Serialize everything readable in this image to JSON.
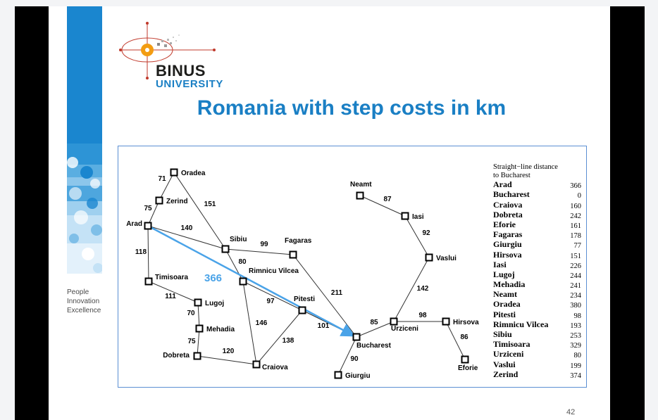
{
  "slide": {
    "title": "Romania with step costs in km",
    "page_number": "42",
    "tagline": [
      "People",
      "Innovation",
      "Excellence"
    ],
    "logo": {
      "name": "BINUS",
      "subtitle": "UNIVERSITY"
    }
  },
  "diagram": {
    "highlight_label": "366",
    "colors": {
      "accent": "#1a7fc4",
      "highlight": "#4aa3e8",
      "edge": "#333333",
      "node": "#000000"
    },
    "nodes": [
      {
        "id": "oradea",
        "label": "Oradea"
      },
      {
        "id": "zerind",
        "label": "Zerind"
      },
      {
        "id": "arad",
        "label": "Arad"
      },
      {
        "id": "sibiu",
        "label": "Sibiu"
      },
      {
        "id": "fagaras",
        "label": "Fagaras"
      },
      {
        "id": "rimnicu",
        "label": "Rimnicu Vilcea"
      },
      {
        "id": "timisoara",
        "label": "Timisoara"
      },
      {
        "id": "lugoj",
        "label": "Lugoj"
      },
      {
        "id": "mehadia",
        "label": "Mehadia"
      },
      {
        "id": "dobreta",
        "label": "Dobreta"
      },
      {
        "id": "craiova",
        "label": "Craiova"
      },
      {
        "id": "pitesti",
        "label": "Pitesti"
      },
      {
        "id": "bucharest",
        "label": "Bucharest"
      },
      {
        "id": "giurgiu",
        "label": "Giurgiu"
      },
      {
        "id": "urziceni",
        "label": "Urziceni"
      },
      {
        "id": "hirsova",
        "label": "Hirsova"
      },
      {
        "id": "eforie",
        "label": "Eforie"
      },
      {
        "id": "vaslui",
        "label": "Vaslui"
      },
      {
        "id": "iasi",
        "label": "Iasi"
      },
      {
        "id": "neamt",
        "label": "Neamt"
      }
    ],
    "edges": [
      {
        "from": "oradea",
        "to": "zerind",
        "cost": "71"
      },
      {
        "from": "zerind",
        "to": "arad",
        "cost": "75"
      },
      {
        "from": "oradea",
        "to": "sibiu",
        "cost": "151"
      },
      {
        "from": "arad",
        "to": "sibiu",
        "cost": "140"
      },
      {
        "from": "arad",
        "to": "timisoara",
        "cost": "118"
      },
      {
        "from": "sibiu",
        "to": "fagaras",
        "cost": "99"
      },
      {
        "from": "sibiu",
        "to": "rimnicu",
        "cost": "80"
      },
      {
        "from": "timisoara",
        "to": "lugoj",
        "cost": "111"
      },
      {
        "from": "lugoj",
        "to": "mehadia",
        "cost": "70"
      },
      {
        "from": "mehadia",
        "to": "dobreta",
        "cost": "75"
      },
      {
        "from": "dobreta",
        "to": "craiova",
        "cost": "120"
      },
      {
        "from": "rimnicu",
        "to": "craiova",
        "cost": "146"
      },
      {
        "from": "rimnicu",
        "to": "pitesti",
        "cost": "97"
      },
      {
        "from": "craiova",
        "to": "pitesti",
        "cost": "138"
      },
      {
        "from": "fagaras",
        "to": "bucharest",
        "cost": "211"
      },
      {
        "from": "pitesti",
        "to": "bucharest",
        "cost": "101"
      },
      {
        "from": "bucharest",
        "to": "giurgiu",
        "cost": "90"
      },
      {
        "from": "bucharest",
        "to": "urziceni",
        "cost": "85"
      },
      {
        "from": "urziceni",
        "to": "hirsova",
        "cost": "98"
      },
      {
        "from": "hirsova",
        "to": "eforie",
        "cost": "86"
      },
      {
        "from": "urziceni",
        "to": "vaslui",
        "cost": "142"
      },
      {
        "from": "vaslui",
        "to": "iasi",
        "cost": "92"
      },
      {
        "from": "iasi",
        "to": "neamt",
        "cost": "87"
      }
    ]
  },
  "legend": {
    "title_line1": "Straight−line distance",
    "title_line2": "to Bucharest",
    "rows": [
      {
        "city": "Arad",
        "dist": "366"
      },
      {
        "city": "Bucharest",
        "dist": "0"
      },
      {
        "city": "Craiova",
        "dist": "160"
      },
      {
        "city": "Dobreta",
        "dist": "242"
      },
      {
        "city": "Eforie",
        "dist": "161"
      },
      {
        "city": "Fagaras",
        "dist": "178"
      },
      {
        "city": "Giurgiu",
        "dist": "77"
      },
      {
        "city": "Hirsova",
        "dist": "151"
      },
      {
        "city": "Iasi",
        "dist": "226"
      },
      {
        "city": "Lugoj",
        "dist": "244"
      },
      {
        "city": "Mehadia",
        "dist": "241"
      },
      {
        "city": "Neamt",
        "dist": "234"
      },
      {
        "city": "Oradea",
        "dist": "380"
      },
      {
        "city": "Pitesti",
        "dist": "98"
      },
      {
        "city": "Rimnicu Vilcea",
        "dist": "193"
      },
      {
        "city": "Sibiu",
        "dist": "253"
      },
      {
        "city": "Timisoara",
        "dist": "329"
      },
      {
        "city": "Urziceni",
        "dist": "80"
      },
      {
        "city": "Vaslui",
        "dist": "199"
      },
      {
        "city": "Zerind",
        "dist": "374"
      }
    ]
  }
}
